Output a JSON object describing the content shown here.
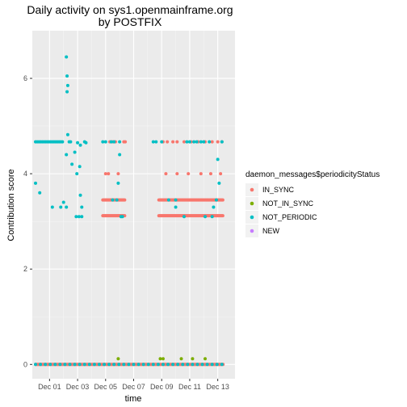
{
  "chart_data": {
    "type": "scatter",
    "title": "Daily activity on sys1.openmainframe.org",
    "subtitle": "by POSTFIX",
    "xlabel": "time",
    "ylabel": "Contribution score",
    "x_ticks": [
      "Dec 01",
      "Dec 03",
      "Dec 05",
      "Dec 07",
      "Dec 09",
      "Dec 11",
      "Dec 13"
    ],
    "y_ticks": [
      "0",
      "2",
      "4",
      "6"
    ],
    "xlim": [
      0,
      14
    ],
    "ylim": [
      -0.3,
      7.0
    ],
    "grid": true,
    "legend_position": "right",
    "legend_title": "daemon_messages$periodicityStatus",
    "colors": {
      "panel": "#ebebeb",
      "grid_major": "#ffffff",
      "grid_minor": "#f5f5f5",
      "IN_SYNC": "#f8766d",
      "NOT_IN_SYNC": "#7cae00",
      "NOT_PERIODIC": "#00bfc4",
      "NEW": "#c77cff"
    },
    "series": [
      {
        "name": "IN_SYNC",
        "color": "#f8766d",
        "ranges": [
          {
            "from": 0.0,
            "to": 13.4,
            "step": 0.06,
            "y": 0.0
          },
          {
            "from": 4.8,
            "to": 6.4,
            "step": 0.06,
            "y": 3.45
          },
          {
            "from": 4.8,
            "to": 6.4,
            "step": 0.06,
            "y": 3.12
          },
          {
            "from": 8.8,
            "to": 13.4,
            "step": 0.06,
            "y": 3.45
          },
          {
            "from": 8.8,
            "to": 13.4,
            "step": 0.06,
            "y": 3.12
          }
        ],
        "points": [
          [
            5.3,
            4.67
          ],
          [
            5.5,
            4.67
          ],
          [
            5.7,
            4.67
          ],
          [
            6.3,
            4.67
          ],
          [
            6.4,
            4.67
          ],
          [
            5.0,
            4.0
          ],
          [
            5.2,
            4.0
          ],
          [
            5.9,
            4.0
          ],
          [
            9.1,
            4.67
          ],
          [
            9.4,
            4.67
          ],
          [
            9.8,
            4.67
          ],
          [
            10.1,
            4.67
          ],
          [
            10.6,
            4.67
          ],
          [
            11.1,
            4.67
          ],
          [
            11.6,
            4.67
          ],
          [
            12.1,
            4.67
          ],
          [
            12.6,
            4.67
          ],
          [
            13.0,
            4.67
          ],
          [
            13.3,
            4.67
          ],
          [
            9.3,
            4.0
          ],
          [
            10.1,
            4.0
          ],
          [
            10.9,
            4.0
          ],
          [
            11.8,
            4.0
          ],
          [
            12.5,
            4.0
          ],
          [
            13.2,
            4.0
          ]
        ]
      },
      {
        "name": "NOT_IN_SYNC",
        "color": "#7cae00",
        "ranges": [],
        "points": [
          [
            5.9,
            0.12
          ],
          [
            8.9,
            0.12
          ],
          [
            9.1,
            0.12
          ],
          [
            10.4,
            0.12
          ],
          [
            11.2,
            0.12
          ],
          [
            12.1,
            0.12
          ]
        ]
      },
      {
        "name": "NOT_PERIODIC",
        "color": "#00bfc4",
        "ranges": [
          {
            "from": 0.0,
            "to": 2.0,
            "step": 0.12,
            "y": 4.67
          },
          {
            "from": 0.0,
            "to": 13.4,
            "step": 0.35,
            "y": 0.0
          }
        ],
        "points": [
          [
            0.0,
            3.8
          ],
          [
            0.3,
            3.6
          ],
          [
            1.2,
            3.3
          ],
          [
            1.8,
            3.3
          ],
          [
            2.2,
            6.45
          ],
          [
            2.25,
            6.05
          ],
          [
            2.3,
            5.85
          ],
          [
            2.25,
            5.72
          ],
          [
            2.3,
            4.82
          ],
          [
            2.2,
            4.4
          ],
          [
            2.4,
            4.67
          ],
          [
            2.5,
            4.67
          ],
          [
            2.2,
            3.3
          ],
          [
            2.0,
            3.4
          ],
          [
            2.6,
            4.2
          ],
          [
            2.8,
            4.45
          ],
          [
            3.0,
            4.65
          ],
          [
            3.2,
            4.6
          ],
          [
            3.5,
            4.67
          ],
          [
            3.2,
            3.55
          ],
          [
            3.3,
            3.3
          ],
          [
            2.9,
            3.1
          ],
          [
            3.1,
            3.1
          ],
          [
            3.3,
            3.1
          ],
          [
            2.95,
            4.0
          ],
          [
            3.15,
            4.15
          ],
          [
            3.6,
            4.65
          ],
          [
            4.8,
            4.67
          ],
          [
            5.0,
            4.67
          ],
          [
            5.4,
            4.67
          ],
          [
            5.6,
            4.67
          ],
          [
            6.0,
            4.67
          ],
          [
            5.5,
            3.45
          ],
          [
            5.8,
            3.45
          ],
          [
            5.9,
            3.8
          ],
          [
            6.1,
            3.1
          ],
          [
            6.2,
            3.1
          ],
          [
            6.0,
            4.4
          ],
          [
            8.4,
            4.67
          ],
          [
            8.6,
            4.67
          ],
          [
            9.0,
            4.67
          ],
          [
            9.5,
            3.45
          ],
          [
            10.0,
            3.45
          ],
          [
            10.8,
            4.67
          ],
          [
            11.0,
            4.67
          ],
          [
            11.3,
            4.67
          ],
          [
            11.5,
            4.67
          ],
          [
            11.8,
            4.67
          ],
          [
            12.0,
            4.67
          ],
          [
            12.4,
            4.67
          ],
          [
            10.0,
            3.3
          ],
          [
            10.6,
            3.1
          ],
          [
            12.1,
            3.1
          ],
          [
            12.6,
            3.1
          ],
          [
            12.7,
            3.3
          ],
          [
            12.9,
            3.45
          ],
          [
            13.1,
            3.8
          ],
          [
            13.3,
            4.67
          ],
          [
            13.0,
            4.3
          ]
        ]
      },
      {
        "name": "NEW",
        "color": "#c77cff",
        "ranges": [],
        "points": []
      }
    ]
  }
}
